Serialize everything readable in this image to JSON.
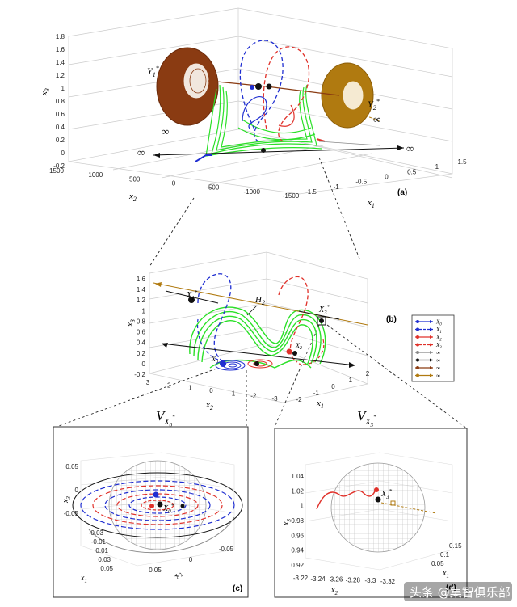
{
  "figure": {
    "panel_a_tag": "(a)",
    "panel_b_tag": "(b)",
    "panel_c_tag": "(c)",
    "panel_d_tag": "(d)",
    "label_V0": "V",
    "label_V0_sub": "X",
    "label_V0_subsub": "0",
    "label_V3": "V",
    "label_V3_sub": "X",
    "label_V3_subsub": "3",
    "label_Y1": "Y",
    "label_Y1_sub": "1",
    "label_Y2": "Y",
    "label_Y2_sub": "2",
    "label_H2": "H",
    "label_H2_sub": "2",
    "label_inf": "∞",
    "watermark": "头条 @集智俱乐部",
    "colors": {
      "blue": "#1f2ed1",
      "red": "#e0312a",
      "green": "#2be028",
      "brown": "#8a3b12",
      "gold": "#b07a10",
      "gray": "#888888"
    }
  },
  "chart_data": [
    {
      "type": "scatter",
      "panel": "(a)",
      "xlabel": "x",
      "xlabel_sub": "2",
      "ylabel": "x",
      "ylabel_sub": "1",
      "zlabel": "x",
      "zlabel_sub": "3",
      "x2_ticks": [
        "1500",
        "1000",
        "500",
        "0",
        "-500",
        "-1000",
        "-1500"
      ],
      "x1_ticks": [
        "1.5",
        "1",
        "0.5",
        "0",
        "-0.5",
        "-1",
        "-1.5"
      ],
      "x3_ticks": [
        "1.8",
        "1.6",
        "1.4",
        "1.2",
        "1",
        "0.8",
        "0.6",
        "0.4",
        "0.2",
        "0",
        "-0.2"
      ],
      "series": [
        {
          "name": "Y",
          "sub": "1",
          "star": true
        },
        {
          "name": "Y",
          "sub": "2",
          "star": true
        }
      ]
    },
    {
      "type": "scatter",
      "panel": "(b)",
      "xlabel": "x",
      "xlabel_sub": "2",
      "ylabel": "x",
      "ylabel_sub": "1",
      "zlabel": "x",
      "zlabel_sub": "3",
      "x2_ticks": [
        "3",
        "2",
        "1",
        "0",
        "-1",
        "-2",
        "-3"
      ],
      "x1_ticks": [
        "2",
        "1",
        "0",
        "-1",
        "-2"
      ],
      "x3_ticks": [
        "1.6",
        "1.4",
        "1.2",
        "1",
        "0.8",
        "0.6",
        "0.4",
        "0.2",
        "0",
        "-0.2"
      ],
      "points": [
        {
          "label": "X",
          "sub": "1"
        },
        {
          "label": "X",
          "sub": "3"
        },
        {
          "label": "X",
          "sub": "0"
        },
        {
          "label": "X",
          "sub": "2"
        }
      ],
      "legend": [
        {
          "label": "X",
          "sub": "0",
          "color": "#1f2ed1",
          "style": "solid"
        },
        {
          "label": "X",
          "sub": "1",
          "color": "#1f2ed1",
          "style": "dashed"
        },
        {
          "label": "X",
          "sub": "2",
          "color": "#e0312a",
          "style": "solid"
        },
        {
          "label": "X",
          "sub": "3",
          "color": "#e0312a",
          "style": "dashed"
        },
        {
          "label": "∞",
          "sub": "",
          "color": "#888888",
          "style": "solid"
        },
        {
          "label": "∞",
          "sub": "",
          "color": "#111111",
          "style": "solid"
        },
        {
          "label": "∞",
          "sub": "",
          "color": "#8a3b12",
          "style": "solid"
        },
        {
          "label": "∞",
          "sub": "",
          "color": "#b07a10",
          "style": "solid"
        }
      ]
    },
    {
      "type": "scatter",
      "panel": "(c)",
      "xlabel": "x",
      "xlabel_sub": "2",
      "ylabel": "x",
      "ylabel_sub": "1",
      "zlabel": "x",
      "zlabel_sub": "3",
      "x3_ticks": [
        "0.05",
        "0",
        "-0.05"
      ],
      "x1_ticks": [
        "-0.03",
        "-0.01",
        "0.01",
        "0.03",
        "0.05"
      ],
      "x2_ticks": [
        "0.05",
        "0",
        "-0.05"
      ],
      "points": [
        {
          "label": "X",
          "sub": "0"
        }
      ]
    },
    {
      "type": "scatter",
      "panel": "(d)",
      "xlabel": "x",
      "xlabel_sub": "2",
      "ylabel": "x",
      "ylabel_sub": "1",
      "zlabel": "x",
      "zlabel_sub": "3",
      "x3_ticks": [
        "1.04",
        "1.02",
        "1",
        "0.98",
        "0.96",
        "0.94",
        "0.92"
      ],
      "x2_ticks": [
        "-3.22",
        "-3.24",
        "-3.26",
        "-3.28",
        "-3.3",
        "-3.32"
      ],
      "x1_ticks": [
        "0.15",
        "0.1",
        "0.05"
      ],
      "points": [
        {
          "label": "X",
          "sub": "3"
        }
      ]
    }
  ]
}
